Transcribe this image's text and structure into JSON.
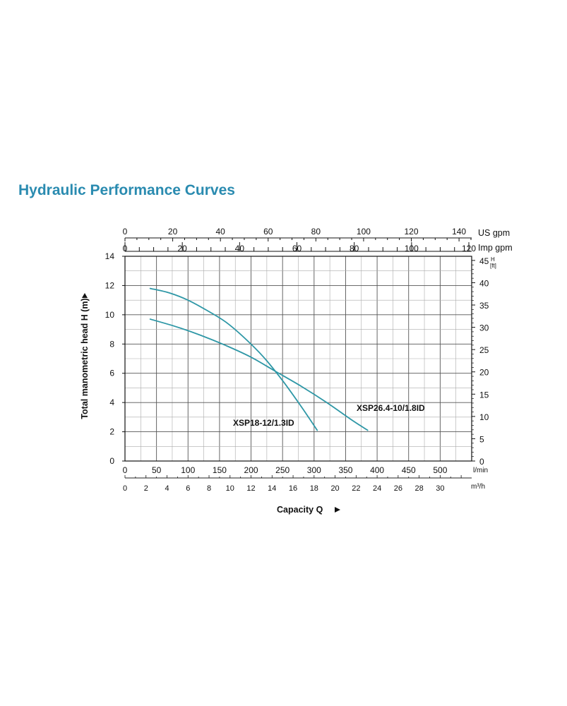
{
  "page": {
    "title": "Hydraulic Performance Curves"
  },
  "chart_data": {
    "type": "line",
    "title": "",
    "ylabel": "Total manometric head H (m)",
    "ylim": [
      0,
      14
    ],
    "yticks": [
      0,
      2,
      4,
      6,
      8,
      10,
      12,
      14
    ],
    "y_right": {
      "label_top": "H",
      "label_unit": "[ft]",
      "ticks": [
        0,
        5,
        10,
        15,
        20,
        25,
        30,
        35,
        40,
        45
      ]
    },
    "xlabel": "Capacity Q",
    "xlim": [
      0,
      550
    ],
    "x_axes": {
      "us_gpm": {
        "unit": "US gpm",
        "ticks": [
          0,
          20,
          40,
          60,
          80,
          100,
          120,
          140
        ]
      },
      "imp_gpm": {
        "unit": "Imp gpm",
        "ticks": [
          0,
          20,
          40,
          60,
          80,
          100,
          120
        ]
      },
      "l_min": {
        "unit": "l/min",
        "ticks": [
          0,
          50,
          100,
          150,
          200,
          250,
          300,
          350,
          400,
          450,
          500
        ]
      },
      "m3_h": {
        "unit": "m³/h",
        "ticks": [
          0,
          2,
          4,
          6,
          8,
          10,
          12,
          14,
          16,
          18,
          20,
          22,
          24,
          26,
          28,
          30
        ]
      }
    },
    "grid": true,
    "series": [
      {
        "name": "XSP18-12/1.3ID",
        "color": "#2e97a6",
        "x": [
          40,
          70,
          100,
          130,
          160,
          190,
          220,
          250,
          280,
          305
        ],
        "y": [
          11.8,
          11.5,
          11.0,
          10.3,
          9.5,
          8.4,
          7.1,
          5.5,
          3.7,
          2.1
        ]
      },
      {
        "name": "XSP26.4-10/1.8ID",
        "color": "#2e97a6",
        "x": [
          40,
          80,
          120,
          160,
          200,
          240,
          280,
          320,
          360,
          385
        ],
        "y": [
          9.7,
          9.2,
          8.6,
          7.9,
          7.1,
          6.1,
          5.1,
          4.0,
          2.8,
          2.1
        ]
      }
    ]
  }
}
